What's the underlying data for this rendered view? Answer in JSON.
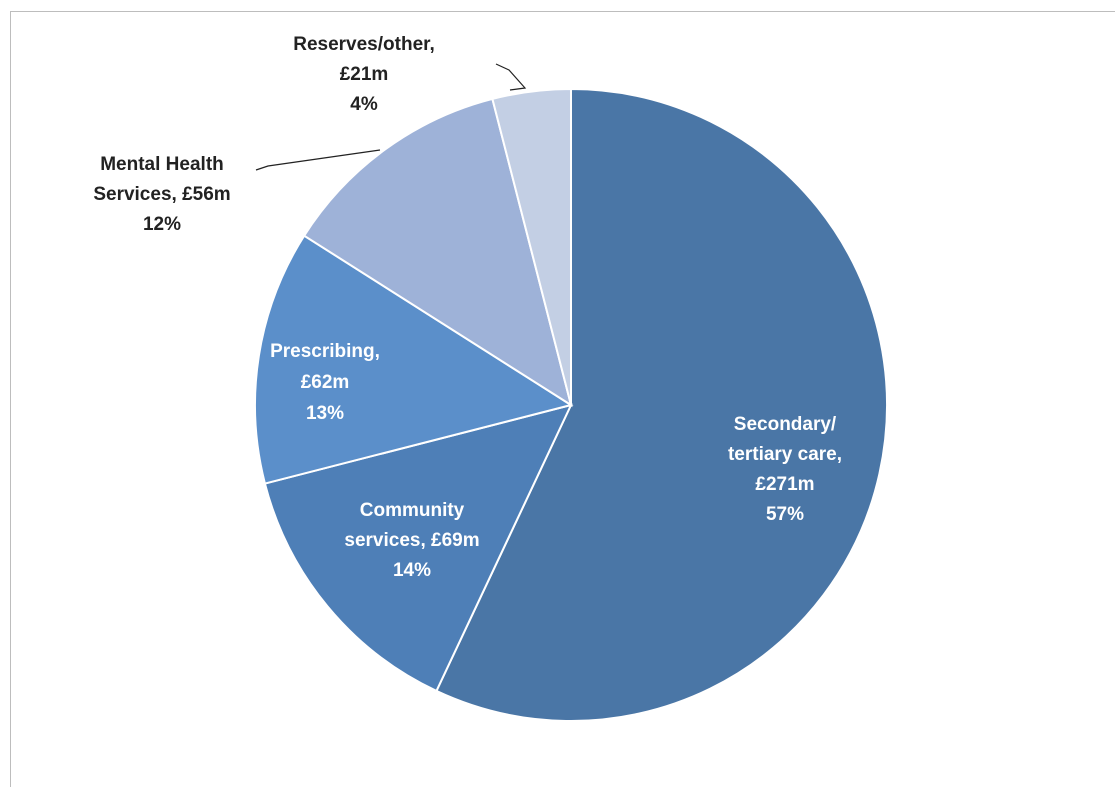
{
  "chart_data": {
    "type": "pie",
    "title": "",
    "start_angle_deg": 0,
    "direction": "clockwise",
    "slices": [
      {
        "name": "Secondary/tertiary care",
        "amount": "£271m",
        "value": 57,
        "unit": "%",
        "label_lines": [
          "Secondary/",
          "tertiary care,",
          "£271m",
          "57%"
        ],
        "color": "#4A76A6",
        "label_color": "#ffffff",
        "label_outside": false
      },
      {
        "name": "Community services",
        "amount": "£69m",
        "value": 14,
        "unit": "%",
        "label_lines": [
          "Community",
          "services, £69m",
          "14%"
        ],
        "color": "#4E7FB7",
        "label_color": "#ffffff",
        "label_outside": false
      },
      {
        "name": "Prescribing",
        "amount": "£62m",
        "value": 13,
        "unit": "%",
        "label_lines": [
          "Prescribing,",
          "£62m",
          "13%"
        ],
        "color": "#5B8FCA",
        "label_color": "#ffffff",
        "label_outside": false
      },
      {
        "name": "Mental Health Services",
        "amount": "£56m",
        "value": 12,
        "unit": "%",
        "label_lines": [
          "Mental Health",
          "Services, £56m",
          "12%"
        ],
        "color": "#9EB2D8",
        "label_color": "#222222",
        "label_outside": true
      },
      {
        "name": "Reserves/other",
        "amount": "£21m",
        "value": 4,
        "unit": "%",
        "label_lines": [
          "Reserves/other,",
          "£21m",
          "4%"
        ],
        "color": "#C3CFE4",
        "label_color": "#222222",
        "label_outside": true
      }
    ],
    "legend": "none",
    "grid": false
  }
}
